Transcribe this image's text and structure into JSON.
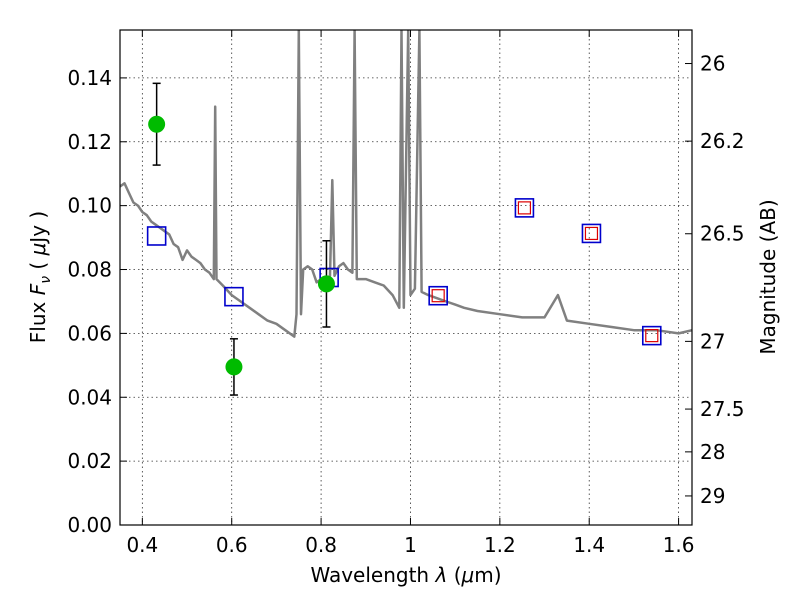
{
  "chart_data": {
    "type": "scatter",
    "title": "",
    "xlabel": "Wavelength",
    "xlabel_lambda": "λ",
    "xlabel_unit_open": "(",
    "xlabel_unit_mu": "μ",
    "xlabel_unit_rest": "m)",
    "ylabel": "Flux",
    "ylabel_symbol": "F",
    "ylabel_subscript": "ν",
    "ylabel_unit_open": "(",
    "ylabel_unit_mu": "μ",
    "ylabel_unit_rest": "Jy )",
    "y2label": "Magnitude (AB)",
    "xlim": [
      0.35,
      1.63
    ],
    "ylim": [
      0.0,
      0.155
    ],
    "grid": true,
    "x_ticks": [
      0.4,
      0.6,
      0.8,
      1.0,
      1.2,
      1.4,
      1.6
    ],
    "x_tick_labels": [
      "0.4",
      "0.6",
      "0.8",
      "1",
      "1.2",
      "1.4",
      "1.6"
    ],
    "y_ticks": [
      0.0,
      0.02,
      0.04,
      0.06,
      0.08,
      0.1,
      0.12,
      0.14
    ],
    "y_tick_labels": [
      "0.00",
      "0.02",
      "0.04",
      "0.06",
      "0.08",
      "0.10",
      "0.12",
      "0.14"
    ],
    "y2_ticks": [
      {
        "label": "26",
        "flux": 0.1445
      },
      {
        "label": "26.2",
        "flux": 0.1202
      },
      {
        "label": "26.5",
        "flux": 0.0912
      },
      {
        "label": "27",
        "flux": 0.0575
      },
      {
        "label": "27.5",
        "flux": 0.0363
      },
      {
        "label": "28",
        "flux": 0.0229
      },
      {
        "label": "29",
        "flux": 0.0091
      }
    ],
    "series": [
      {
        "kind": "model_sed",
        "color": "#808080",
        "points": [
          [
            0.35,
            0.106
          ],
          [
            0.36,
            0.107
          ],
          [
            0.37,
            0.104
          ],
          [
            0.38,
            0.101
          ],
          [
            0.39,
            0.1
          ],
          [
            0.4,
            0.098
          ],
          [
            0.41,
            0.097
          ],
          [
            0.42,
            0.095
          ],
          [
            0.43,
            0.094
          ],
          [
            0.44,
            0.093
          ],
          [
            0.45,
            0.092
          ],
          [
            0.46,
            0.091
          ],
          [
            0.47,
            0.088
          ],
          [
            0.48,
            0.087
          ],
          [
            0.49,
            0.083
          ],
          [
            0.5,
            0.086
          ],
          [
            0.51,
            0.084
          ],
          [
            0.52,
            0.083
          ],
          [
            0.53,
            0.082
          ],
          [
            0.54,
            0.08
          ],
          [
            0.55,
            0.079
          ],
          [
            0.56,
            0.077
          ],
          [
            0.563,
            0.131
          ],
          [
            0.566,
            0.077
          ],
          [
            0.58,
            0.075
          ],
          [
            0.6,
            0.072
          ],
          [
            0.62,
            0.07
          ],
          [
            0.64,
            0.068
          ],
          [
            0.66,
            0.066
          ],
          [
            0.68,
            0.064
          ],
          [
            0.7,
            0.063
          ],
          [
            0.72,
            0.061
          ],
          [
            0.74,
            0.059
          ],
          [
            0.745,
            0.066
          ],
          [
            0.75,
            0.155
          ],
          [
            0.755,
            0.066
          ],
          [
            0.76,
            0.08
          ],
          [
            0.77,
            0.081
          ],
          [
            0.78,
            0.08
          ],
          [
            0.79,
            0.076
          ],
          [
            0.8,
            0.077
          ],
          [
            0.81,
            0.077
          ],
          [
            0.82,
            0.078
          ],
          [
            0.825,
            0.108
          ],
          [
            0.83,
            0.078
          ],
          [
            0.84,
            0.081
          ],
          [
            0.85,
            0.082
          ],
          [
            0.86,
            0.08
          ],
          [
            0.87,
            0.079
          ],
          [
            0.875,
            0.155
          ],
          [
            0.88,
            0.077
          ],
          [
            0.9,
            0.077
          ],
          [
            0.92,
            0.076
          ],
          [
            0.94,
            0.075
          ],
          [
            0.96,
            0.072
          ],
          [
            0.975,
            0.068
          ],
          [
            0.98,
            0.155
          ],
          [
            0.985,
            0.068
          ],
          [
            0.995,
            0.155
          ],
          [
            1.0,
            0.072
          ],
          [
            1.01,
            0.074
          ],
          [
            1.02,
            0.155
          ],
          [
            1.025,
            0.073
          ],
          [
            1.04,
            0.072
          ],
          [
            1.06,
            0.071
          ],
          [
            1.08,
            0.07
          ],
          [
            1.1,
            0.069
          ],
          [
            1.12,
            0.068
          ],
          [
            1.15,
            0.067
          ],
          [
            1.2,
            0.066
          ],
          [
            1.25,
            0.065
          ],
          [
            1.3,
            0.065
          ],
          [
            1.33,
            0.072
          ],
          [
            1.35,
            0.064
          ],
          [
            1.4,
            0.063
          ],
          [
            1.45,
            0.062
          ],
          [
            1.5,
            0.061
          ],
          [
            1.55,
            0.061
          ],
          [
            1.6,
            0.06
          ],
          [
            1.63,
            0.061
          ]
        ]
      },
      {
        "kind": "model_photometry",
        "marker": "open-square",
        "color": "#0000cc",
        "x": [
          0.432,
          0.605,
          0.818,
          1.062,
          1.255,
          1.405,
          1.54
        ],
        "y": [
          0.0905,
          0.0715,
          0.0775,
          0.0718,
          0.0993,
          0.0913,
          0.0593
        ]
      },
      {
        "kind": "observed_photometry",
        "marker": "open-square",
        "color": "#dd0000",
        "x": [
          1.062,
          1.255,
          1.405,
          1.54
        ],
        "y": [
          0.0718,
          0.0993,
          0.0913,
          0.0593
        ]
      },
      {
        "kind": "observed_detections",
        "marker": "filled-circle",
        "color": "#00bb00",
        "x": [
          0.432,
          0.605,
          0.812
        ],
        "y": [
          0.1255,
          0.0495,
          0.0755
        ],
        "yerr": [
          0.0128,
          0.0088,
          0.0135
        ]
      }
    ]
  }
}
